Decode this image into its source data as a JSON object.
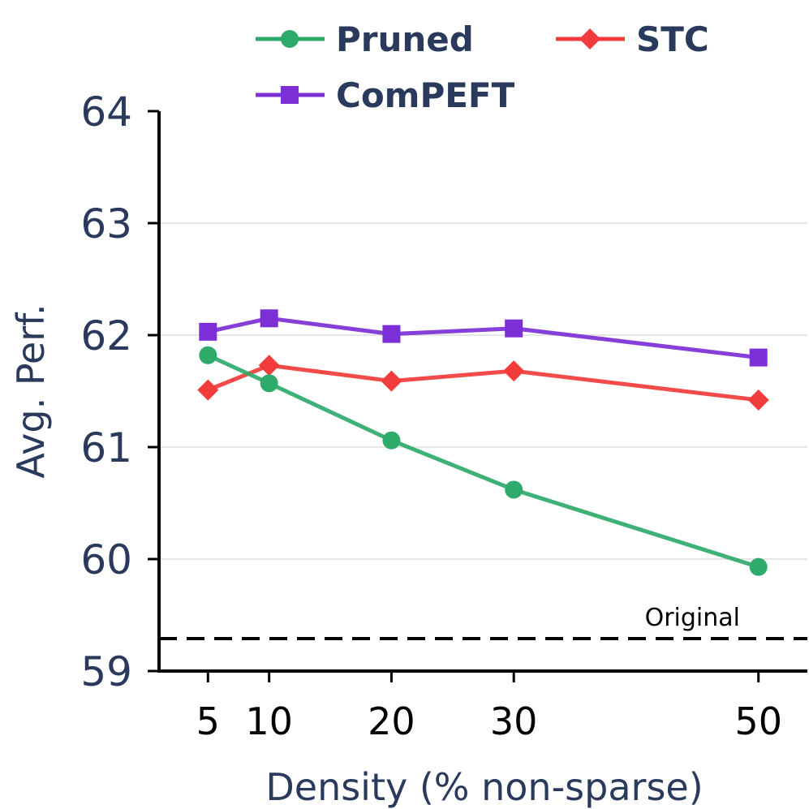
{
  "chart_data": {
    "type": "line",
    "title": "",
    "xlabel": "Density (% non-sparse)",
    "ylabel": "Avg. Perf.",
    "x": [
      5,
      10,
      20,
      30,
      50
    ],
    "x_tick_labels": [
      "5",
      "10",
      "20",
      "30",
      "50"
    ],
    "xlim": [
      1,
      54
    ],
    "ylim": [
      59,
      64
    ],
    "y_ticks": [
      59,
      60,
      61,
      62,
      63,
      64
    ],
    "y_tick_labels": [
      "59",
      "60",
      "61",
      "62",
      "63",
      "64"
    ],
    "grid": "horizontal",
    "legend_position": "top",
    "series": [
      {
        "name": "Pruned",
        "color": "#2eaa6a",
        "marker": "circle",
        "values": [
          61.82,
          61.57,
          61.06,
          60.62,
          59.93
        ]
      },
      {
        "name": "STC",
        "color": "#f23b3b",
        "marker": "diamond",
        "values": [
          61.51,
          61.73,
          61.59,
          61.68,
          61.42
        ]
      },
      {
        "name": "ComPEFT",
        "color": "#7c2fd6",
        "marker": "square",
        "values": [
          62.03,
          62.15,
          62.01,
          62.06,
          61.8
        ]
      }
    ],
    "reference_line": {
      "label": "Original",
      "value": 59.29,
      "style": "dashed",
      "color": "#000000"
    }
  }
}
